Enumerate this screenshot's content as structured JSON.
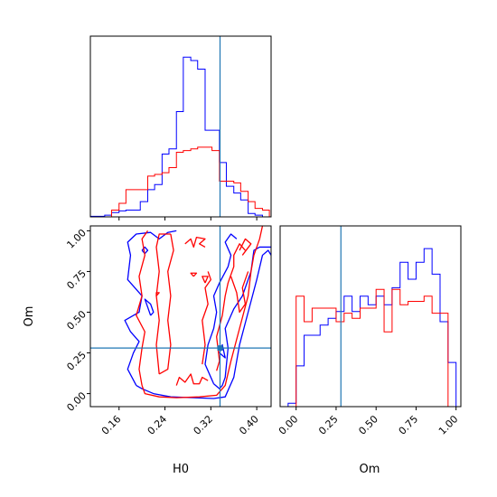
{
  "chart_data": {
    "type": "corner",
    "colors": {
      "blue": "#0000ff",
      "red": "#ff0000",
      "truth": "#1f77b4"
    },
    "truth": {
      "H0": 0.336,
      "Om": 0.28
    },
    "x_labels": {
      "H0": "H0",
      "Om": "Om"
    },
    "y_label": "Om",
    "panels": [
      {
        "id": "H0-hist",
        "type": "histogram",
        "x_range": [
          0.11,
          0.425
        ],
        "edges": [
          0.11,
          0.122,
          0.135,
          0.147,
          0.16,
          0.172,
          0.185,
          0.197,
          0.21,
          0.222,
          0.235,
          0.247,
          0.26,
          0.272,
          0.285,
          0.297,
          0.31,
          0.322,
          0.335,
          0.347,
          0.36,
          0.372,
          0.385,
          0.397,
          0.41,
          0.422
        ],
        "series": [
          {
            "name": "blue",
            "color": "#0000ff",
            "values": [
              0.003,
              0.003,
              0.01,
              0.025,
              0.035,
              0.04,
              0.04,
              0.09,
              0.16,
              0.19,
              0.37,
              0.4,
              0.62,
              0.94,
              0.92,
              0.87,
              0.51,
              0.51,
              0.32,
              0.18,
              0.14,
              0.1,
              0.02,
              0.01,
              0.0
            ]
          },
          {
            "name": "red",
            "color": "#ff0000",
            "values": [
              0.0,
              0.0,
              0.0,
              0.04,
              0.08,
              0.16,
              0.16,
              0.16,
              0.24,
              0.25,
              0.26,
              0.29,
              0.38,
              0.39,
              0.4,
              0.41,
              0.41,
              0.39,
              0.21,
              0.21,
              0.2,
              0.15,
              0.09,
              0.05,
              0.04
            ]
          }
        ],
        "xticks": [
          "0.16",
          "0.24",
          "0.32",
          "0.40"
        ],
        "xtick_values": [
          0.16,
          0.24,
          0.32,
          0.4
        ]
      },
      {
        "id": "H0-Om-contour",
        "type": "contour",
        "x_range": [
          0.11,
          0.425
        ],
        "y_range": [
          -0.08,
          1.03
        ],
        "xticks": [
          "0.16",
          "0.24",
          "0.32",
          "0.40"
        ],
        "xtick_values": [
          0.16,
          0.24,
          0.32,
          0.4
        ],
        "yticks": [
          "0.00",
          "0.25",
          "0.50",
          "0.75",
          "1.00"
        ],
        "ytick_values": [
          0.0,
          0.25,
          0.5,
          0.75,
          1.0
        ],
        "xlabel": "H0",
        "ylabel": "Om"
      },
      {
        "id": "Om-hist",
        "type": "histogram",
        "x_range": [
          -0.1,
          1.03
        ],
        "edges": [
          -0.05,
          0.0,
          0.05,
          0.1,
          0.15,
          0.2,
          0.25,
          0.3,
          0.35,
          0.4,
          0.45,
          0.5,
          0.55,
          0.6,
          0.65,
          0.7,
          0.75,
          0.8,
          0.85,
          0.9,
          0.95,
          1.0
        ],
        "series": [
          {
            "name": "blue",
            "color": "#0000ff",
            "values": [
              0.02,
              0.24,
              0.42,
              0.42,
              0.48,
              0.52,
              0.56,
              0.65,
              0.56,
              0.65,
              0.6,
              0.65,
              0.6,
              0.7,
              0.85,
              0.75,
              0.85,
              0.93,
              0.78,
              0.5,
              0.26
            ]
          },
          {
            "name": "red",
            "color": "#ff0000",
            "values": [
              0.0,
              0.65,
              0.5,
              0.58,
              0.58,
              0.58,
              0.5,
              0.55,
              0.52,
              0.58,
              0.58,
              0.69,
              0.44,
              0.69,
              0.6,
              0.62,
              0.62,
              0.65,
              0.55,
              0.55,
              0.0
            ]
          }
        ],
        "xticks": [
          "0.00",
          "0.25",
          "0.50",
          "0.75",
          "1.00"
        ],
        "xtick_values": [
          0.0,
          0.25,
          0.5,
          0.75,
          1.0
        ],
        "xlabel": "Om"
      }
    ],
    "contours": [
      {
        "name": "blue",
        "color": "#0000ff",
        "paths": [
          [
            [
              0.19,
              0.05
            ],
            [
              0.2,
              0.03
            ],
            [
              0.22,
              0.0
            ],
            [
              0.25,
              -0.02
            ],
            [
              0.29,
              -0.025
            ],
            [
              0.325,
              -0.03
            ],
            [
              0.345,
              -0.02
            ],
            [
              0.36,
              0.1
            ],
            [
              0.37,
              0.3
            ],
            [
              0.385,
              0.5
            ],
            [
              0.4,
              0.7
            ],
            [
              0.41,
              0.85
            ],
            [
              0.42,
              0.88
            ],
            [
              0.425,
              0.85
            ]
          ],
          [
            [
              0.19,
              0.05
            ],
            [
              0.175,
              0.15
            ],
            [
              0.185,
              0.25
            ],
            [
              0.195,
              0.32
            ],
            [
              0.18,
              0.38
            ],
            [
              0.17,
              0.45
            ],
            [
              0.195,
              0.5
            ],
            [
              0.2,
              0.6
            ],
            [
              0.175,
              0.7
            ],
            [
              0.18,
              0.85
            ],
            [
              0.175,
              0.93
            ],
            [
              0.19,
              0.98
            ],
            [
              0.215,
              0.99
            ],
            [
              0.23,
              0.95
            ],
            [
              0.245,
              0.99
            ],
            [
              0.26,
              1.0
            ]
          ],
          [
            [
              0.325,
              0.06
            ],
            [
              0.32,
              0.1
            ],
            [
              0.31,
              0.18
            ],
            [
              0.315,
              0.3
            ],
            [
              0.325,
              0.4
            ],
            [
              0.33,
              0.5
            ],
            [
              0.325,
              0.6
            ],
            [
              0.335,
              0.68
            ],
            [
              0.35,
              0.78
            ],
            [
              0.355,
              0.85
            ],
            [
              0.345,
              0.93
            ],
            [
              0.355,
              0.98
            ],
            [
              0.365,
              0.95
            ]
          ],
          [
            [
              0.325,
              0.06
            ],
            [
              0.335,
              0.03
            ],
            [
              0.34,
              0.05
            ],
            [
              0.345,
              0.1
            ],
            [
              0.35,
              0.28
            ],
            [
              0.345,
              0.4
            ],
            [
              0.36,
              0.52
            ],
            [
              0.375,
              0.6
            ],
            [
              0.39,
              0.75
            ],
            [
              0.395,
              0.88
            ],
            [
              0.405,
              0.9
            ],
            [
              0.425,
              0.9
            ]
          ],
          [
            [
              0.2,
              0.88
            ],
            [
              0.205,
              0.86
            ],
            [
              0.21,
              0.88
            ],
            [
              0.205,
              0.9
            ],
            [
              0.2,
              0.88
            ]
          ],
          [
            [
              0.215,
              0.48
            ],
            [
              0.22,
              0.5
            ],
            [
              0.215,
              0.55
            ],
            [
              0.205,
              0.58
            ],
            [
              0.21,
              0.53
            ],
            [
              0.215,
              0.48
            ]
          ],
          [
            [
              0.335,
              0.25
            ],
            [
              0.345,
              0.22
            ],
            [
              0.34,
              0.3
            ],
            [
              0.335,
              0.25
            ]
          ]
        ]
      },
      {
        "name": "red",
        "color": "#ff0000",
        "paths": [
          [
            [
              0.2,
              0.05
            ],
            [
              0.205,
              0.0
            ],
            [
              0.23,
              -0.02
            ],
            [
              0.26,
              -0.025
            ],
            [
              0.3,
              -0.02
            ],
            [
              0.33,
              -0.01
            ],
            [
              0.345,
              0.05
            ],
            [
              0.355,
              0.2
            ],
            [
              0.37,
              0.4
            ],
            [
              0.385,
              0.6
            ],
            [
              0.39,
              0.75
            ],
            [
              0.395,
              0.85
            ],
            [
              0.405,
              0.95
            ],
            [
              0.41,
              1.03
            ]
          ],
          [
            [
              0.2,
              0.05
            ],
            [
              0.195,
              0.15
            ],
            [
              0.2,
              0.28
            ],
            [
              0.205,
              0.38
            ],
            [
              0.19,
              0.48
            ],
            [
              0.2,
              0.6
            ],
            [
              0.195,
              0.72
            ],
            [
              0.205,
              0.85
            ],
            [
              0.2,
              0.95
            ],
            [
              0.21,
              1.0
            ]
          ],
          [
            [
              0.23,
              0.12
            ],
            [
              0.245,
              0.15
            ],
            [
              0.25,
              0.3
            ],
            [
              0.245,
              0.45
            ],
            [
              0.25,
              0.6
            ],
            [
              0.245,
              0.75
            ],
            [
              0.255,
              0.88
            ],
            [
              0.25,
              0.98
            ]
          ],
          [
            [
              0.23,
              0.12
            ],
            [
              0.225,
              0.3
            ],
            [
              0.23,
              0.45
            ],
            [
              0.225,
              0.6
            ],
            [
              0.23,
              0.75
            ],
            [
              0.225,
              0.9
            ],
            [
              0.23,
              0.98
            ],
            [
              0.25,
              0.98
            ]
          ],
          [
            [
              0.26,
              0.05
            ],
            [
              0.265,
              0.1
            ],
            [
              0.275,
              0.07
            ],
            [
              0.285,
              0.12
            ],
            [
              0.29,
              0.06
            ],
            [
              0.3,
              0.06
            ],
            [
              0.305,
              0.1
            ],
            [
              0.315,
              0.08
            ]
          ],
          [
            [
              0.275,
              0.92
            ],
            [
              0.285,
              0.95
            ],
            [
              0.29,
              0.9
            ],
            [
              0.295,
              0.96
            ],
            [
              0.31,
              0.95
            ],
            [
              0.3,
              0.92
            ],
            [
              0.31,
              0.9
            ]
          ],
          [
            [
              0.305,
              0.18
            ],
            [
              0.31,
              0.3
            ],
            [
              0.305,
              0.45
            ],
            [
              0.315,
              0.55
            ],
            [
              0.31,
              0.65
            ],
            [
              0.32,
              0.7
            ],
            [
              0.315,
              0.75
            ]
          ],
          [
            [
              0.33,
              0.14
            ],
            [
              0.335,
              0.2
            ],
            [
              0.33,
              0.35
            ],
            [
              0.34,
              0.48
            ],
            [
              0.345,
              0.6
            ],
            [
              0.35,
              0.68
            ],
            [
              0.36,
              0.78
            ],
            [
              0.36,
              0.85
            ],
            [
              0.37,
              0.92
            ],
            [
              0.38,
              0.88
            ]
          ],
          [
            [
              0.355,
              0.72
            ],
            [
              0.365,
              0.62
            ],
            [
              0.37,
              0.5
            ],
            [
              0.38,
              0.55
            ],
            [
              0.375,
              0.65
            ],
            [
              0.385,
              0.75
            ]
          ],
          [
            [
              0.37,
              0.88
            ],
            [
              0.38,
              0.95
            ],
            [
              0.39,
              0.92
            ],
            [
              0.375,
              0.85
            ]
          ],
          [
            [
              0.31,
              0.68
            ],
            [
              0.315,
              0.72
            ],
            [
              0.305,
              0.72
            ],
            [
              0.31,
              0.68
            ]
          ],
          [
            [
              0.29,
              0.72
            ],
            [
              0.295,
              0.74
            ],
            [
              0.285,
              0.74
            ],
            [
              0.29,
              0.72
            ]
          ],
          [
            [
              0.225,
              0.6
            ],
            [
              0.23,
              0.62
            ],
            [
              0.225,
              0.62
            ],
            [
              0.225,
              0.6
            ]
          ]
        ]
      }
    ]
  }
}
